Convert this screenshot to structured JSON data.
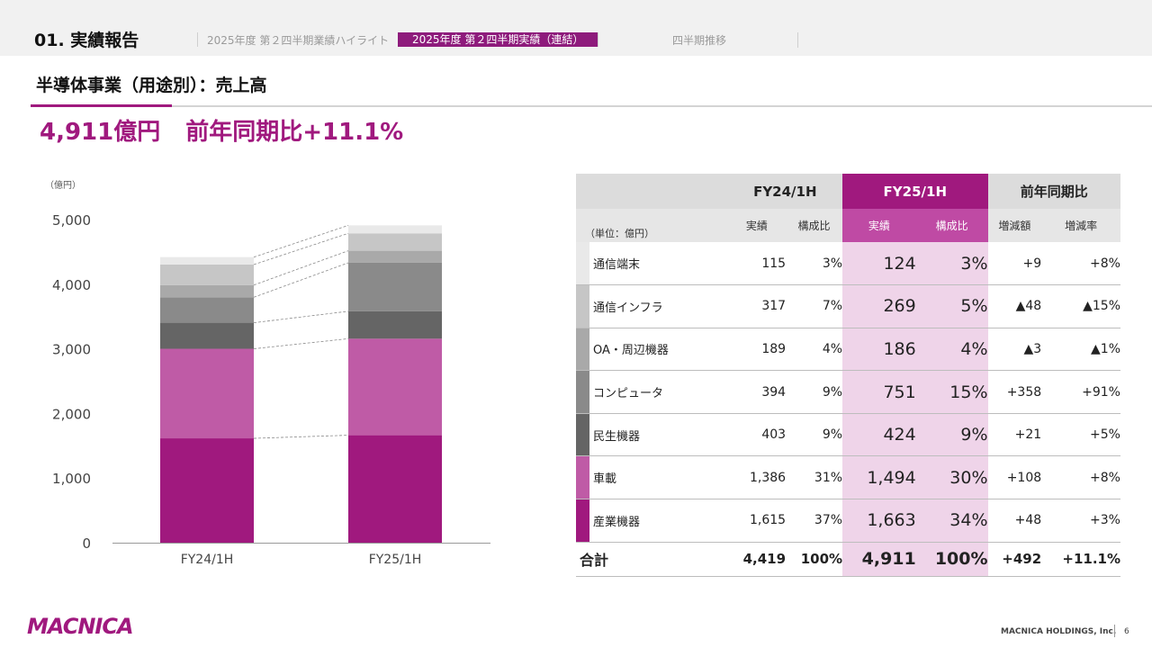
{
  "header": {
    "section_title": "01. 実績報告",
    "tabs": [
      {
        "label": "2025年度 第２四半期業績ハイライト",
        "active": false
      },
      {
        "label": "2025年度 第２四半期実績（連結）",
        "active": true
      },
      {
        "label": "四半期推移",
        "active": false
      }
    ]
  },
  "subtitle": "半導体事業（用途別）：売上高",
  "headline": {
    "amount": "4,911億円",
    "comparison": "前年同期比+11.1%"
  },
  "colors": {
    "accent": "#a0197e",
    "accent_light": "#efd4e9"
  },
  "chart_data": {
    "type": "bar",
    "stacked": true,
    "unit_label": "（億円）",
    "categories": [
      "FY24/1H",
      "FY25/1H"
    ],
    "yticks": [
      "0",
      "1,000",
      "2,000",
      "3,000",
      "4,000",
      "5,000"
    ],
    "ylim": [
      0,
      5000
    ],
    "series": [
      {
        "name": "産業機器",
        "values": [
          1615,
          1663
        ],
        "color": "#a0197e"
      },
      {
        "name": "車載",
        "values": [
          1386,
          1494
        ],
        "color": "#bf5ba6"
      },
      {
        "name": "民生機器",
        "values": [
          403,
          424
        ],
        "color": "#656565"
      },
      {
        "name": "コンピュータ",
        "values": [
          394,
          751
        ],
        "color": "#8a8a8a"
      },
      {
        "name": "OA・周辺機器",
        "values": [
          189,
          186
        ],
        "color": "#a9a9a9"
      },
      {
        "name": "通信インフラ",
        "values": [
          317,
          269
        ],
        "color": "#c6c6c6"
      },
      {
        "name": "通信端末",
        "values": [
          115,
          124
        ],
        "color": "#e9e9e9"
      }
    ]
  },
  "table": {
    "unit": "（単位：億円）",
    "groups": [
      "FY24/1H",
      "FY25/1H",
      "前年同期比"
    ],
    "subheaders": [
      "実績",
      "構成比",
      "実績",
      "構成比",
      "増減額",
      "増減率"
    ],
    "rows": [
      {
        "name": "通信端末",
        "color": "#e9e9e9",
        "cells": [
          "115",
          "3%",
          "124",
          "3%",
          "+9",
          "+8%"
        ]
      },
      {
        "name": "通信インフラ",
        "color": "#c6c6c6",
        "cells": [
          "317",
          "7%",
          "269",
          "5%",
          "▲48",
          "▲15%"
        ]
      },
      {
        "name": "OA・周辺機器",
        "color": "#a9a9a9",
        "cells": [
          "189",
          "4%",
          "186",
          "4%",
          "▲3",
          "▲1%"
        ]
      },
      {
        "name": "コンピュータ",
        "color": "#8a8a8a",
        "cells": [
          "394",
          "9%",
          "751",
          "15%",
          "+358",
          "+91%"
        ]
      },
      {
        "name": "民生機器",
        "color": "#656565",
        "cells": [
          "403",
          "9%",
          "424",
          "9%",
          "+21",
          "+5%"
        ]
      },
      {
        "name": "車載",
        "color": "#bf5ba6",
        "cells": [
          "1,386",
          "31%",
          "1,494",
          "30%",
          "+108",
          "+8%"
        ]
      },
      {
        "name": "産業機器",
        "color": "#a0197e",
        "cells": [
          "1,615",
          "37%",
          "1,663",
          "34%",
          "+48",
          "+3%"
        ]
      }
    ],
    "total": {
      "name": "合計",
      "cells": [
        "4,419",
        "100%",
        "4,911",
        "100%",
        "+492",
        "+11.1%"
      ]
    }
  },
  "footer": {
    "logo": "MACNICA",
    "company": "MACNICA HOLDINGS, Inc.",
    "page": "6"
  }
}
